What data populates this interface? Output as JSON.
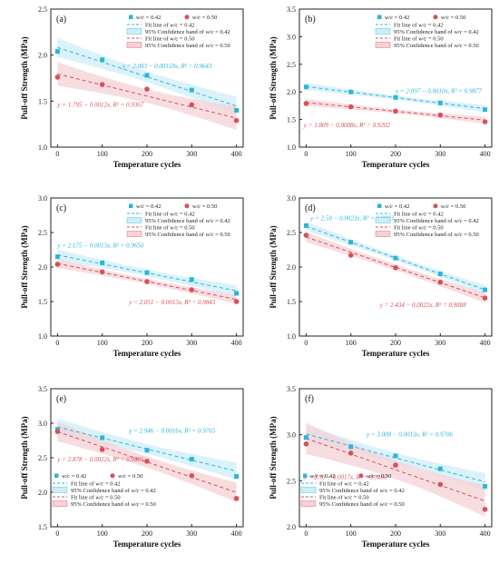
{
  "colors": {
    "w042": "#2bb6d8",
    "w050": "#d8505a",
    "band042": "#cdeef8",
    "band050": "#f6d2d5"
  },
  "legend": {
    "w042": "w/c = 0.42",
    "w050": "w/c = 0.50",
    "fit042": "Fit line of w/c = 0.42",
    "band042": "95% Confidence band of w/c = 0.42",
    "fit050": "Fit line of w/c = 0.50",
    "band050": "95% Confidence band of w/c = 0.50"
  },
  "chart_data": [
    {
      "type": "scatter",
      "panel": "(a)",
      "xlabel": "Temperature cycles",
      "ylabel": "Pull-off Strength (MPa)",
      "x": [
        0,
        100,
        200,
        300,
        400
      ],
      "xticks": [
        0,
        100,
        200,
        300,
        400
      ],
      "ylim": [
        1.0,
        2.5
      ],
      "yticks": [
        "1.0",
        "1.5",
        "2.0",
        "2.5"
      ],
      "legend_position": "top-right",
      "series": [
        {
          "name": "w/c = 0.42",
          "values": [
            2.04,
            1.95,
            1.78,
            1.62,
            1.4
          ],
          "fit": {
            "intercept": 2.083,
            "slope": -0.00159
          },
          "equation": "y = 2.083 − 0.00159x, R² = 0.9643"
        },
        {
          "name": "w/c = 0.50",
          "values": [
            1.76,
            1.68,
            1.63,
            1.46,
            1.29
          ],
          "fit": {
            "intercept": 1.795,
            "slope": -0.0012
          },
          "equation": "y = 1.795 − 0.0012x, R² = 0.9367"
        }
      ]
    },
    {
      "type": "scatter",
      "panel": "(b)",
      "xlabel": "Temperature cycles",
      "ylabel": "Pull-off Strength (MPa)",
      "x": [
        0,
        100,
        200,
        300,
        400
      ],
      "xticks": [
        0,
        100,
        200,
        300,
        400
      ],
      "ylim": [
        1.0,
        3.5
      ],
      "yticks": [
        "1.0",
        "1.5",
        "2.0",
        "2.5",
        "3.0",
        "3.5"
      ],
      "legend_position": "top-right",
      "series": [
        {
          "name": "w/c = 0.42",
          "values": [
            2.09,
            2.0,
            1.9,
            1.8,
            1.68
          ],
          "fit": {
            "intercept": 2.097,
            "slope": -0.001
          },
          "equation": "y = 2.097 − 0.0010x, R² = 0.9877"
        },
        {
          "name": "w/c = 0.50",
          "values": [
            1.79,
            1.73,
            1.65,
            1.58,
            1.46
          ],
          "fit": {
            "intercept": 1.809,
            "slope": -0.0008
          },
          "equation": "y = 1.809 − 0.0008x, R² = 0.9202"
        }
      ]
    },
    {
      "type": "scatter",
      "panel": "(c)",
      "xlabel": "Temperature cycles",
      "ylabel": "Pull-off Strength (MPa)",
      "x": [
        0,
        100,
        200,
        300,
        400
      ],
      "xticks": [
        0,
        100,
        200,
        300,
        400
      ],
      "ylim": [
        1.0,
        3.0
      ],
      "yticks": [
        "1.0",
        "1.5",
        "2.0",
        "2.5",
        "3.0"
      ],
      "legend_position": "top-right",
      "series": [
        {
          "name": "w/c = 0.42",
          "values": [
            2.15,
            2.06,
            1.92,
            1.82,
            1.62
          ],
          "fit": {
            "intercept": 2.175,
            "slope": -0.0013
          },
          "equation": "y = 2.175 − 0.0013x, R² = 0.9650"
        },
        {
          "name": "w/c = 0.50",
          "values": [
            2.04,
            1.93,
            1.79,
            1.67,
            1.5
          ],
          "fit": {
            "intercept": 2.051,
            "slope": -0.0013
          },
          "equation": "y = 2.051 − 0.0013x, R² = 0.9843"
        }
      ]
    },
    {
      "type": "scatter",
      "panel": "(d)",
      "xlabel": "Temperature cycles",
      "ylabel": "Pull-off Strength (MPa)",
      "x": [
        0,
        100,
        200,
        300,
        400
      ],
      "xticks": [
        0,
        100,
        200,
        300,
        400
      ],
      "ylim": [
        1.0,
        3.0
      ],
      "yticks": [
        "1.0",
        "1.5",
        "2.0",
        "2.5",
        "3.0"
      ],
      "legend_position": "top-right",
      "series": [
        {
          "name": "w/c = 0.42",
          "values": [
            2.6,
            2.36,
            2.13,
            1.9,
            1.67
          ],
          "fit": {
            "intercept": 2.59,
            "slope": -0.0023
          },
          "equation": "y = 2.59 − 0.0023x, R² = 0.9993"
        },
        {
          "name": "w/c = 0.50",
          "values": [
            2.46,
            2.17,
            1.99,
            1.78,
            1.55
          ],
          "fit": {
            "intercept": 2.434,
            "slope": -0.0022
          },
          "equation": "y = 2.434 − 0.0022x, R² = 0.9888"
        }
      ]
    },
    {
      "type": "scatter",
      "panel": "(e)",
      "xlabel": "Temperature cycles",
      "ylabel": "Pull-off Strength (MPa)",
      "x": [
        0,
        100,
        200,
        300,
        400
      ],
      "xticks": [
        0,
        100,
        200,
        300,
        400
      ],
      "ylim": [
        1.5,
        3.5
      ],
      "yticks": [
        "1.5",
        "2.0",
        "2.5",
        "3.0",
        "3.5"
      ],
      "legend_position": "bottom-left",
      "series": [
        {
          "name": "w/c = 0.42",
          "values": [
            2.91,
            2.79,
            2.61,
            2.48,
            2.23
          ],
          "fit": {
            "intercept": 2.946,
            "slope": -0.0016
          },
          "equation": "y = 2.946 − 0.0016x, R² = 0.9765"
        },
        {
          "name": "w/c = 0.50",
          "values": [
            2.88,
            2.62,
            2.45,
            2.24,
            1.91
          ],
          "fit": {
            "intercept": 2.878,
            "slope": -0.0022
          },
          "equation": "y = 2.878 − 0.0022x, R² = 0.9805"
        }
      ]
    },
    {
      "type": "scatter",
      "panel": "(f)",
      "xlabel": "Temperature cycles",
      "ylabel": "Pull-off Strength (MPa)",
      "x": [
        0,
        100,
        200,
        300,
        400
      ],
      "xticks": [
        0,
        100,
        200,
        300,
        400
      ],
      "ylim": [
        2.0,
        3.5
      ],
      "yticks": [
        "2.0",
        "2.5",
        "3.0",
        "3.5"
      ],
      "legend_position": "bottom-left",
      "series": [
        {
          "name": "w/c = 0.42",
          "values": [
            2.97,
            2.87,
            2.77,
            2.63,
            2.44
          ],
          "fit": {
            "intercept": 3.008,
            "slope": -0.0013
          },
          "equation": "y = 3.008 − 0.0013x, R² = 0.9706"
        },
        {
          "name": "w/c = 0.50",
          "values": [
            2.9,
            2.8,
            2.67,
            2.46,
            2.19
          ],
          "fit": {
            "intercept": 2.96,
            "slope": -0.0017
          },
          "equation": "y = 2.96 − 0.0017x, R² = 0.9460"
        }
      ]
    }
  ]
}
